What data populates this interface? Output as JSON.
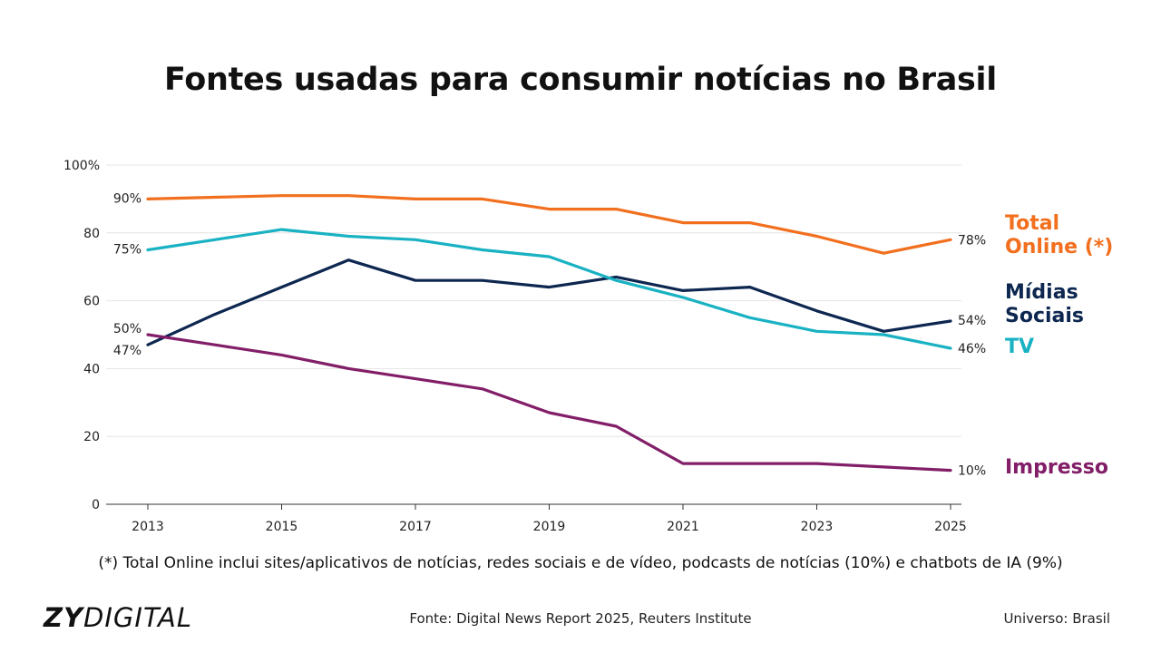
{
  "page": {
    "title": "Fontes usadas para consumir notícias no Brasil",
    "footnote": "(*) Total Online inclui sites/aplicativos de notícias, redes sociais e de vídeo, podcasts de notícias (10%) e chatbots de IA (9%)",
    "logo_bold": "ZY",
    "logo_light": "DIGITAL",
    "source": "Fonte: Digital News Report 2025, Reuters Institute",
    "universe": "Universo: Brasil"
  },
  "chart_data": {
    "type": "line",
    "title": "Fontes usadas para consumir notícias no Brasil",
    "xlabel": "",
    "ylabel": "",
    "x": [
      2013,
      2014,
      2015,
      2016,
      2017,
      2018,
      2019,
      2020,
      2021,
      2022,
      2023,
      2024,
      2025
    ],
    "x_ticks": [
      "2013",
      "2015",
      "2017",
      "2019",
      "2021",
      "2023",
      "2025"
    ],
    "y_ticks": [
      "0",
      "20",
      "40",
      "60",
      "80",
      "100%"
    ],
    "ylim": [
      0,
      100
    ],
    "grid": "horizontal",
    "legend": "direct labels at right end of lines",
    "series": [
      {
        "name": "Total Online (*)",
        "name_lines": [
          "Total",
          "Online (*)"
        ],
        "color": "#f26f1e",
        "values": [
          90,
          90.5,
          91,
          91,
          90,
          90,
          87,
          87,
          83,
          83,
          79,
          74,
          78
        ],
        "start_label": "90%",
        "end_label": "78%"
      },
      {
        "name": "Mídias Sociais",
        "name_lines": [
          "Mídias",
          "Sociais"
        ],
        "color": "#0d2750",
        "values": [
          47,
          56,
          64,
          72,
          66,
          66,
          64,
          67,
          63,
          64,
          57,
          51,
          54
        ],
        "start_label": "47%",
        "end_label": "54%"
      },
      {
        "name": "TV",
        "name_lines": [
          "TV"
        ],
        "color": "#19b2c3",
        "values": [
          75,
          78,
          81,
          79,
          78,
          75,
          73,
          66,
          61,
          55,
          51,
          50,
          46
        ],
        "start_label": "75%",
        "end_label": "46%"
      },
      {
        "name": "Impresso",
        "name_lines": [
          "Impresso"
        ],
        "color": "#821e68",
        "values": [
          50,
          47,
          44,
          40,
          37,
          34,
          27,
          23,
          12,
          12,
          12,
          11,
          10
        ],
        "start_label": "50%",
        "end_label": "10%"
      }
    ]
  }
}
